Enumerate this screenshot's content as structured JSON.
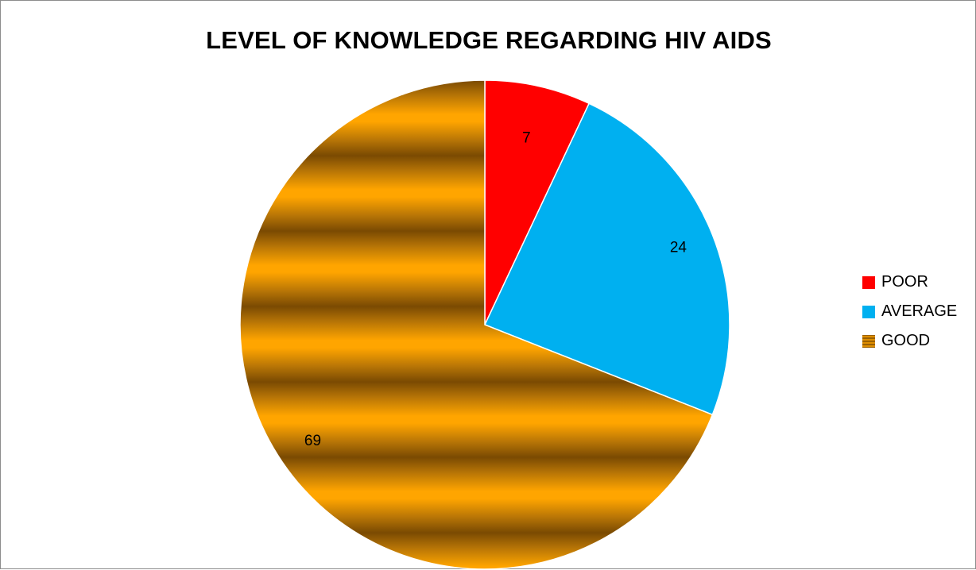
{
  "chart_data": {
    "type": "pie",
    "title": "LEVEL OF KNOWLEDGE REGARDING HIV AIDS",
    "categories": [
      "POOR",
      "AVERAGE",
      "GOOD"
    ],
    "values": [
      7,
      24,
      69
    ],
    "data_labels": [
      "7",
      "24",
      "69"
    ],
    "colors": [
      "#ff0000",
      "#00b0f0",
      "#c8880a"
    ],
    "legend_position": "right",
    "start_angle": "12 o'clock",
    "direction": "clockwise"
  }
}
